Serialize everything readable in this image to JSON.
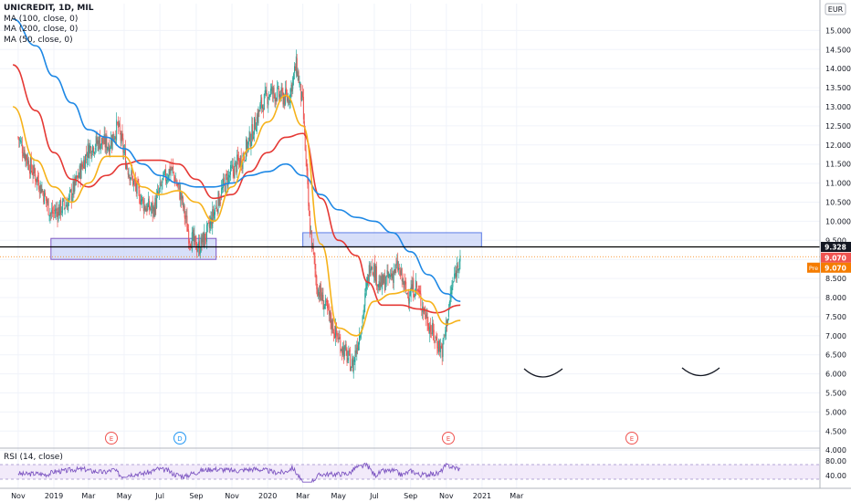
{
  "legend": {
    "title": "UNICREDIT, 1D, MIL",
    "ma100": "MA (100, close, 0)",
    "ma200": "MA (200, close, 0)",
    "ma50": "MA (50, close, 0)"
  },
  "rsi_label": "RSI (14, close)",
  "currency": "EUR",
  "colors": {
    "up": "#26a69a",
    "down": "#ef5350",
    "ma100": "#e53935",
    "ma200": "#1e88e5",
    "ma50": "#f6b21a",
    "zone_fill": "#c9d4f7",
    "zone_stroke": "#7e57c2",
    "rsi": "#7e57c2",
    "price_line": "#000000",
    "badge_red": "#ef5350",
    "badge_orange": "#f57c00",
    "earnings": "#ef5350",
    "dividend": "#2196f3"
  },
  "price_badges": [
    {
      "text": "9.328",
      "color": "#131722"
    },
    {
      "text": "9.070",
      "color": "#ef5350"
    },
    {
      "label": "Pre",
      "text": "9.070",
      "color": "#f57c00"
    }
  ],
  "event_markers": [
    "E",
    "D",
    "E",
    "E"
  ],
  "chart_data": {
    "type": "candlestick",
    "title": "UNICREDIT, 1D, MIL",
    "x_labels": [
      "Nov",
      "2019",
      "Mar",
      "May",
      "Jul",
      "Sep",
      "Nov",
      "2020",
      "Mar",
      "May",
      "Jul",
      "Sep",
      "Nov",
      "2021",
      "Mar"
    ],
    "y_ticks": [
      "15.000",
      "14.500",
      "14.000",
      "13.500",
      "13.000",
      "12.500",
      "12.000",
      "11.500",
      "11.000",
      "10.500",
      "10.000",
      "9.500",
      "9.000",
      "8.500",
      "8.000",
      "7.500",
      "7.000",
      "6.500",
      "6.000",
      "5.500",
      "5.000",
      "4.500",
      "4.000"
    ],
    "ylim": [
      4.0,
      15.3
    ],
    "price_series": {
      "name": "Close",
      "x": [
        "2018-11-01",
        "2018-11-20",
        "2018-12-10",
        "2018-12-27",
        "2019-01-10",
        "2019-01-25",
        "2019-02-10",
        "2019-03-01",
        "2019-03-20",
        "2019-04-05",
        "2019-04-20",
        "2019-05-05",
        "2019-05-20",
        "2019-06-05",
        "2019-06-20",
        "2019-07-05",
        "2019-07-20",
        "2019-08-05",
        "2019-08-20",
        "2019-09-05",
        "2019-09-20",
        "2019-10-05",
        "2019-10-20",
        "2019-11-05",
        "2019-11-20",
        "2019-12-05",
        "2019-12-20",
        "2020-01-05",
        "2020-01-20",
        "2020-02-05",
        "2020-02-19",
        "2020-03-01",
        "2020-03-12",
        "2020-03-25",
        "2020-04-10",
        "2020-04-25",
        "2020-05-10",
        "2020-05-25",
        "2020-06-10",
        "2020-06-25",
        "2020-07-10",
        "2020-07-25",
        "2020-08-10",
        "2020-08-25",
        "2020-09-10",
        "2020-09-25",
        "2020-10-10",
        "2020-10-25",
        "2020-11-10",
        "2020-11-25"
      ],
      "values": [
        12.2,
        11.5,
        10.9,
        10.2,
        10.3,
        10.5,
        11.1,
        11.9,
        12.1,
        12.0,
        12.5,
        11.5,
        10.9,
        10.4,
        10.3,
        11.0,
        11.4,
        10.7,
        9.6,
        9.3,
        9.7,
        10.4,
        11.0,
        11.4,
        11.7,
        12.3,
        13.0,
        13.4,
        13.3,
        13.2,
        14.1,
        13.0,
        10.0,
        8.3,
        7.7,
        7.1,
        6.6,
        6.2,
        7.4,
        9.0,
        8.3,
        8.5,
        8.8,
        8.1,
        8.3,
        7.6,
        7.0,
        6.6,
        8.2,
        9.2
      ]
    },
    "series": [
      {
        "name": "MA (100, close, 0)",
        "x": [
          "2018-10-23",
          "2018-12-01",
          "2019-01-01",
          "2019-02-01",
          "2019-03-01",
          "2019-04-01",
          "2019-05-01",
          "2019-06-01",
          "2019-07-01",
          "2019-08-01",
          "2019-09-01",
          "2019-10-01",
          "2019-11-01",
          "2019-12-01",
          "2020-01-01",
          "2020-02-01",
          "2020-03-01",
          "2020-04-01",
          "2020-05-01",
          "2020-06-01",
          "2020-06-20",
          "2020-07-15",
          "2020-08-15",
          "2020-09-15",
          "2020-10-15",
          "2020-11-25"
        ],
        "values": [
          14.1,
          12.9,
          11.8,
          11.1,
          10.9,
          11.2,
          11.5,
          11.6,
          11.6,
          11.5,
          11.1,
          10.6,
          10.7,
          11.3,
          11.8,
          12.2,
          12.3,
          10.6,
          9.5,
          9.1,
          8.4,
          7.8,
          7.8,
          7.7,
          7.6,
          7.8
        ]
      },
      {
        "name": "MA (200, close, 0)",
        "x": [
          "2018-10-23",
          "2018-12-01",
          "2019-01-01",
          "2019-02-01",
          "2019-03-01",
          "2019-04-01",
          "2019-05-01",
          "2019-06-01",
          "2019-07-01",
          "2019-08-01",
          "2019-09-01",
          "2019-10-01",
          "2019-11-01",
          "2019-12-01",
          "2020-01-01",
          "2020-02-01",
          "2020-03-01",
          "2020-04-01",
          "2020-05-01",
          "2020-06-01",
          "2020-07-01",
          "2020-08-01",
          "2020-09-01",
          "2020-10-01",
          "2020-11-01",
          "2020-11-25"
        ],
        "values": [
          15.3,
          14.6,
          13.8,
          13.1,
          12.4,
          12.2,
          11.9,
          11.5,
          11.2,
          11.0,
          10.9,
          10.9,
          11.0,
          11.2,
          11.3,
          11.5,
          11.2,
          10.7,
          10.3,
          10.1,
          10.0,
          9.7,
          9.2,
          8.6,
          8.1,
          7.9
        ]
      },
      {
        "name": "MA (50, close, 0)",
        "x": [
          "2018-10-23",
          "2018-12-01",
          "2019-01-01",
          "2019-02-01",
          "2019-03-01",
          "2019-04-01",
          "2019-05-01",
          "2019-06-01",
          "2019-07-01",
          "2019-08-01",
          "2019-09-01",
          "2019-10-01",
          "2019-11-01",
          "2019-12-01",
          "2020-01-01",
          "2020-02-01",
          "2020-03-01",
          "2020-04-01",
          "2020-05-01",
          "2020-06-01",
          "2020-07-01",
          "2020-08-01",
          "2020-09-01",
          "2020-10-01",
          "2020-11-01",
          "2020-11-25"
        ],
        "values": [
          13.0,
          11.6,
          10.9,
          10.5,
          11.0,
          11.7,
          11.7,
          10.9,
          10.7,
          10.8,
          10.5,
          10.0,
          10.9,
          11.9,
          12.6,
          13.3,
          12.5,
          9.4,
          7.2,
          7.0,
          7.9,
          8.1,
          8.2,
          7.9,
          7.3,
          7.4
        ]
      }
    ],
    "zones": [
      {
        "x_start": "2018-12-27",
        "x_end": "2019-10-05",
        "y_low": 9.0,
        "y_high": 9.55
      },
      {
        "x_start": "2020-03-01",
        "x_end": "2020-12-31",
        "y_low": 9.33,
        "y_high": 9.7
      }
    ],
    "horizontal_line": 9.328,
    "rsi": {
      "label": "RSI (14, close)",
      "y_ticks": [
        "80.00",
        "40.00"
      ],
      "upper": 70,
      "lower": 30
    }
  }
}
